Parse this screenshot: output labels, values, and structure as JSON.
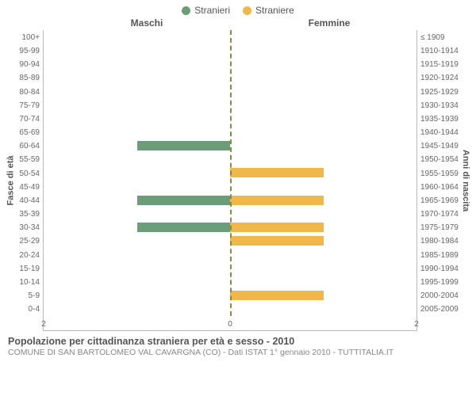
{
  "chart": {
    "type": "population-pyramid",
    "legend": [
      {
        "label": "Stranieri",
        "color": "#6b9e78"
      },
      {
        "label": "Straniere",
        "color": "#f0b74a"
      }
    ],
    "column_headers": {
      "left": "Maschi",
      "right": "Femmine"
    },
    "axis_labels": {
      "left": "Fasce di età",
      "right": "Anni di nascita"
    },
    "x_axis": {
      "max": 2,
      "ticks": [
        {
          "pos": 0,
          "label": "2"
        },
        {
          "pos": 50,
          "label": "0"
        },
        {
          "pos": 100,
          "label": "2"
        }
      ]
    },
    "grid_color": "#e5e5e5",
    "center_dash_color": "#8a8a4a",
    "bar_colors": {
      "male": "#6b9e78",
      "female": "#f0b74a"
    },
    "rows": [
      {
        "age": "100+",
        "birth": "≤ 1909",
        "m": 0,
        "f": 0
      },
      {
        "age": "95-99",
        "birth": "1910-1914",
        "m": 0,
        "f": 0
      },
      {
        "age": "90-94",
        "birth": "1915-1919",
        "m": 0,
        "f": 0
      },
      {
        "age": "85-89",
        "birth": "1920-1924",
        "m": 0,
        "f": 0
      },
      {
        "age": "80-84",
        "birth": "1925-1929",
        "m": 0,
        "f": 0
      },
      {
        "age": "75-79",
        "birth": "1930-1934",
        "m": 0,
        "f": 0
      },
      {
        "age": "70-74",
        "birth": "1935-1939",
        "m": 0,
        "f": 0
      },
      {
        "age": "65-69",
        "birth": "1940-1944",
        "m": 0,
        "f": 0
      },
      {
        "age": "60-64",
        "birth": "1945-1949",
        "m": 1,
        "f": 0
      },
      {
        "age": "55-59",
        "birth": "1950-1954",
        "m": 0,
        "f": 0
      },
      {
        "age": "50-54",
        "birth": "1955-1959",
        "m": 0,
        "f": 1
      },
      {
        "age": "45-49",
        "birth": "1960-1964",
        "m": 0,
        "f": 0
      },
      {
        "age": "40-44",
        "birth": "1965-1969",
        "m": 1,
        "f": 1
      },
      {
        "age": "35-39",
        "birth": "1970-1974",
        "m": 0,
        "f": 0
      },
      {
        "age": "30-34",
        "birth": "1975-1979",
        "m": 1,
        "f": 1
      },
      {
        "age": "25-29",
        "birth": "1980-1984",
        "m": 0,
        "f": 1
      },
      {
        "age": "20-24",
        "birth": "1985-1989",
        "m": 0,
        "f": 0
      },
      {
        "age": "15-19",
        "birth": "1990-1994",
        "m": 0,
        "f": 0
      },
      {
        "age": "10-14",
        "birth": "1995-1999",
        "m": 0,
        "f": 0
      },
      {
        "age": "5-9",
        "birth": "2000-2004",
        "m": 0,
        "f": 1
      },
      {
        "age": "0-4",
        "birth": "2005-2009",
        "m": 0,
        "f": 0
      }
    ]
  },
  "footer": {
    "title": "Popolazione per cittadinanza straniera per età e sesso - 2010",
    "subtitle": "COMUNE DI SAN BARTOLOMEO VAL CAVARGNA (CO) - Dati ISTAT 1° gennaio 2010 - TUTTITALIA.IT"
  }
}
